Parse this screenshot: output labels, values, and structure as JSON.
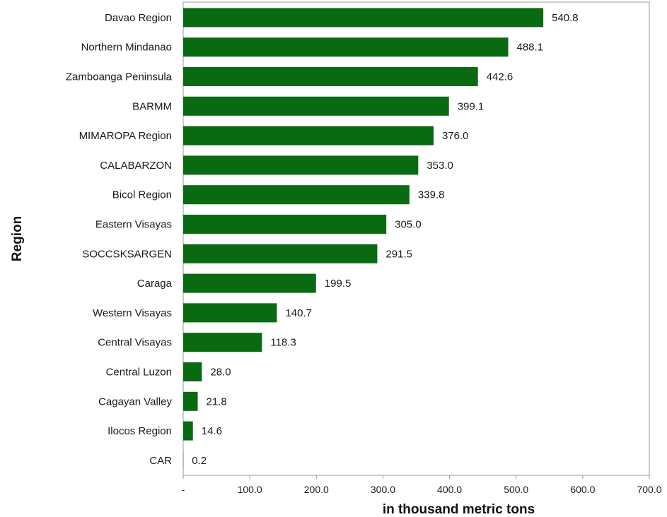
{
  "chart_data": {
    "type": "bar",
    "orientation": "horizontal",
    "categories": [
      "Davao Region",
      "Northern Mindanao",
      "Zamboanga Peninsula",
      "BARMM",
      "MIMAROPA Region",
      "CALABARZON",
      "Bicol Region",
      "Eastern Visayas",
      "SOCCSKSARGEN",
      "Caraga",
      "Western Visayas",
      "Central Visayas",
      "Central Luzon",
      "Cagayan Valley",
      "Ilocos Region",
      "CAR"
    ],
    "values": [
      540.8,
      488.1,
      442.6,
      399.1,
      376.0,
      353.0,
      339.8,
      305.0,
      291.5,
      199.5,
      140.7,
      118.3,
      28.0,
      21.8,
      14.6,
      0.2
    ],
    "value_labels": [
      "540.8",
      "488.1",
      "442.6",
      "399.1",
      "376.0",
      "353.0",
      "339.8",
      "305.0",
      "291.5",
      "199.5",
      "140.7",
      "118.3",
      "28.0",
      "21.8",
      "14.6",
      "0.2"
    ],
    "xlabel": "in thousand metric tons",
    "ylabel": "Region",
    "xlim": [
      0,
      700
    ],
    "x_ticks": [
      0,
      100,
      200,
      300,
      400,
      500,
      600,
      700
    ],
    "x_tick_labels": [
      "-",
      "100.0",
      "200.0",
      "300.0",
      "400.0",
      "500.0",
      "600.0",
      "700.0"
    ],
    "grid": false,
    "legend": "none",
    "bar_color": "#0a6a12"
  }
}
